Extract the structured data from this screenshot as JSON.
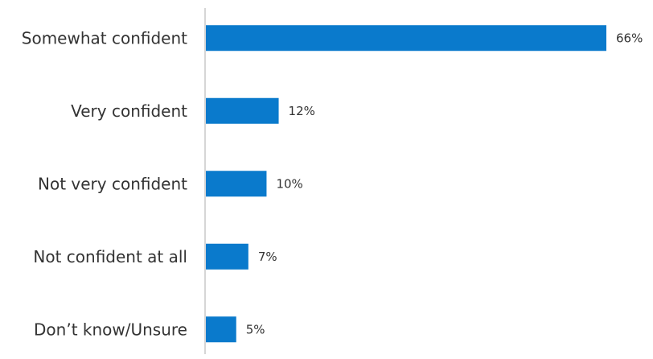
{
  "chart_data": {
    "type": "bar",
    "orientation": "horizontal",
    "categories": [
      "Somewhat confident",
      "Very confident",
      "Not very confident",
      "Not confident at all",
      "Don’t know/Unsure"
    ],
    "values": [
      66,
      12,
      10,
      7,
      5
    ],
    "value_labels": [
      "66%",
      "12%",
      "10%",
      "7%",
      "5%"
    ],
    "xlim": [
      0,
      66
    ],
    "grid": false,
    "bar_color": "#0A7ACC",
    "axis_color": "#C8C8C8"
  }
}
